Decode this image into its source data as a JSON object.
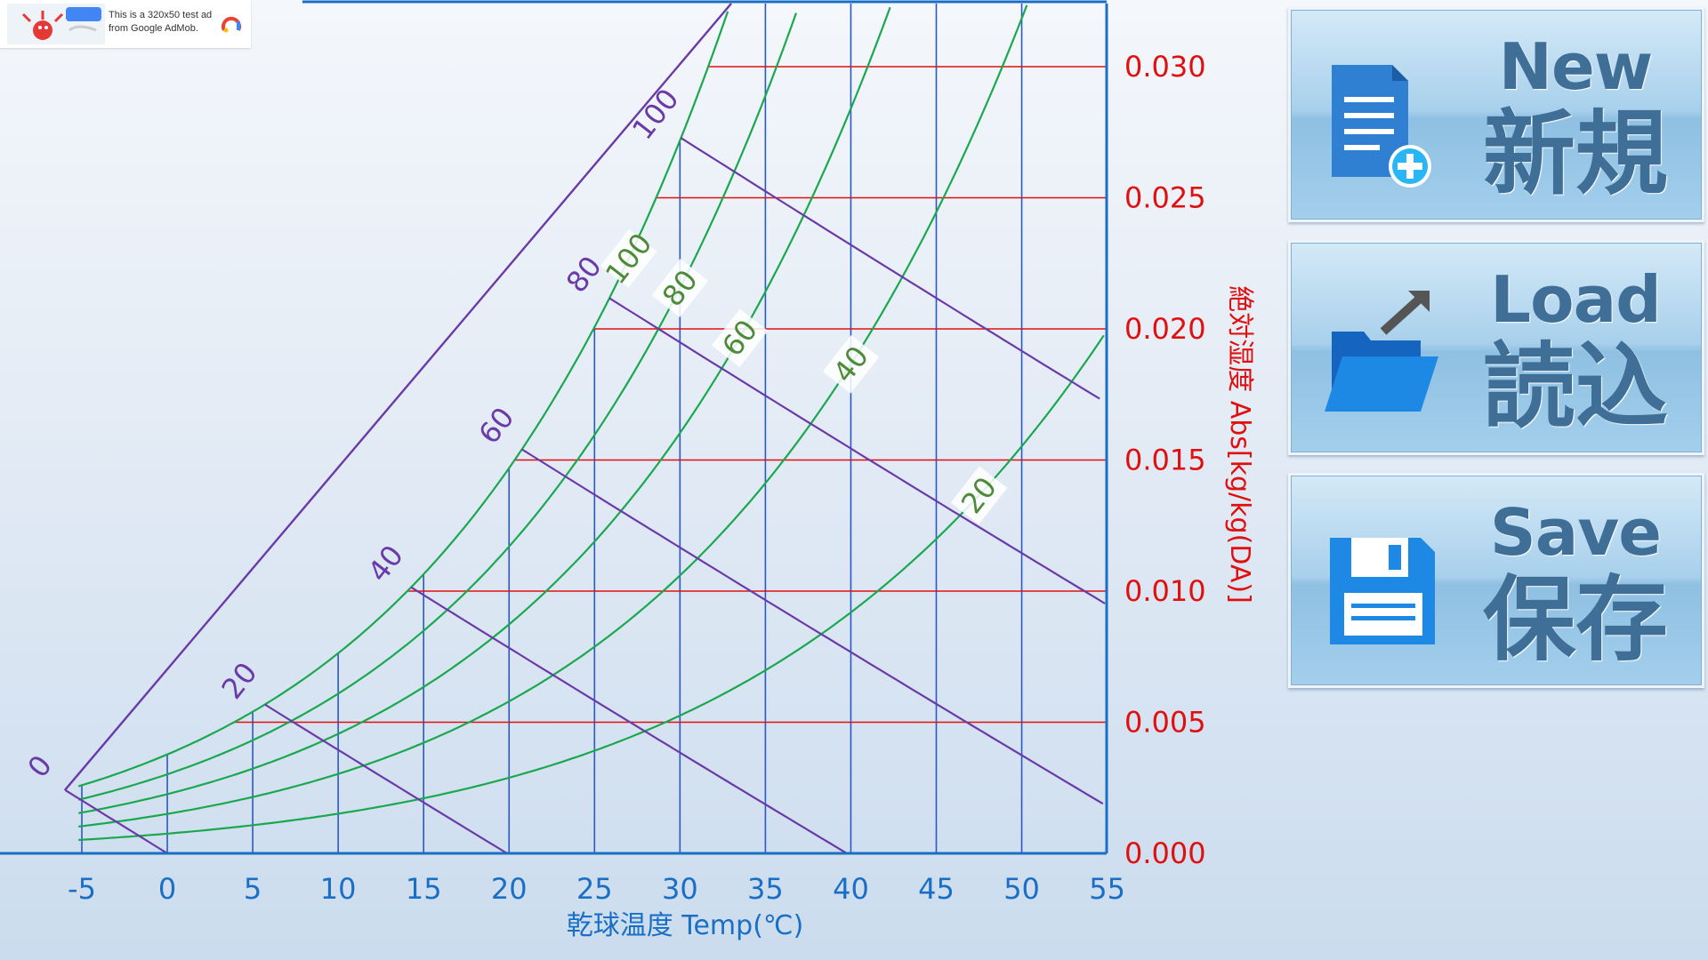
{
  "ad": {
    "line1": "This is a 320x50 test ad",
    "line2": "from Google AdMob."
  },
  "buttons": [
    {
      "id": "new",
      "en": "New",
      "jp": "新規",
      "icon": "new-document-icon"
    },
    {
      "id": "load",
      "en": "Load",
      "jp": "読込",
      "icon": "open-folder-icon"
    },
    {
      "id": "save",
      "en": "Save",
      "jp": "保存",
      "icon": "floppy-disk-icon"
    }
  ],
  "chart_data": {
    "type": "line",
    "xlabel": "乾球温度 Temp(℃)",
    "ylabel": "絶対湿度 Abs[kg/kg(DA)]",
    "xlim": [
      -5,
      55
    ],
    "ylim": [
      0.0,
      0.033
    ],
    "x_ticks": [
      -5,
      0,
      5,
      10,
      15,
      20,
      25,
      30,
      35,
      40,
      45,
      50,
      55
    ],
    "y_ticks": [
      0.0,
      0.005,
      0.01,
      0.015,
      0.02,
      0.025,
      0.03
    ],
    "x_tick_labels": [
      "-5",
      "0",
      "5",
      "10",
      "15",
      "20",
      "25",
      "30",
      "35",
      "40",
      "45",
      "50",
      "55"
    ],
    "y_tick_labels": [
      "0.000",
      "0.005",
      "0.010",
      "0.015",
      "0.020",
      "0.025",
      "0.030"
    ],
    "relative_humidity_curves": [
      20,
      40,
      60,
      80,
      100
    ],
    "relative_humidity_labels": [
      "20",
      "40",
      "60",
      "80",
      "100"
    ],
    "enthalpy_lines": [
      0,
      20,
      40,
      60,
      80,
      100
    ],
    "enthalpy_labels": [
      "0",
      "20",
      "40",
      "60",
      "80",
      "100"
    ],
    "colors": {
      "rh_curve": "#1aa84f",
      "rh_label": "#4e8a3a",
      "enthalpy": "#6a3aa8",
      "dry_bulb": "#2a58c8",
      "humidity_line": "#e01010",
      "axis": "#1a6fc4",
      "y_labels": "#e01010",
      "x_labels": "#1a6fc4"
    }
  }
}
